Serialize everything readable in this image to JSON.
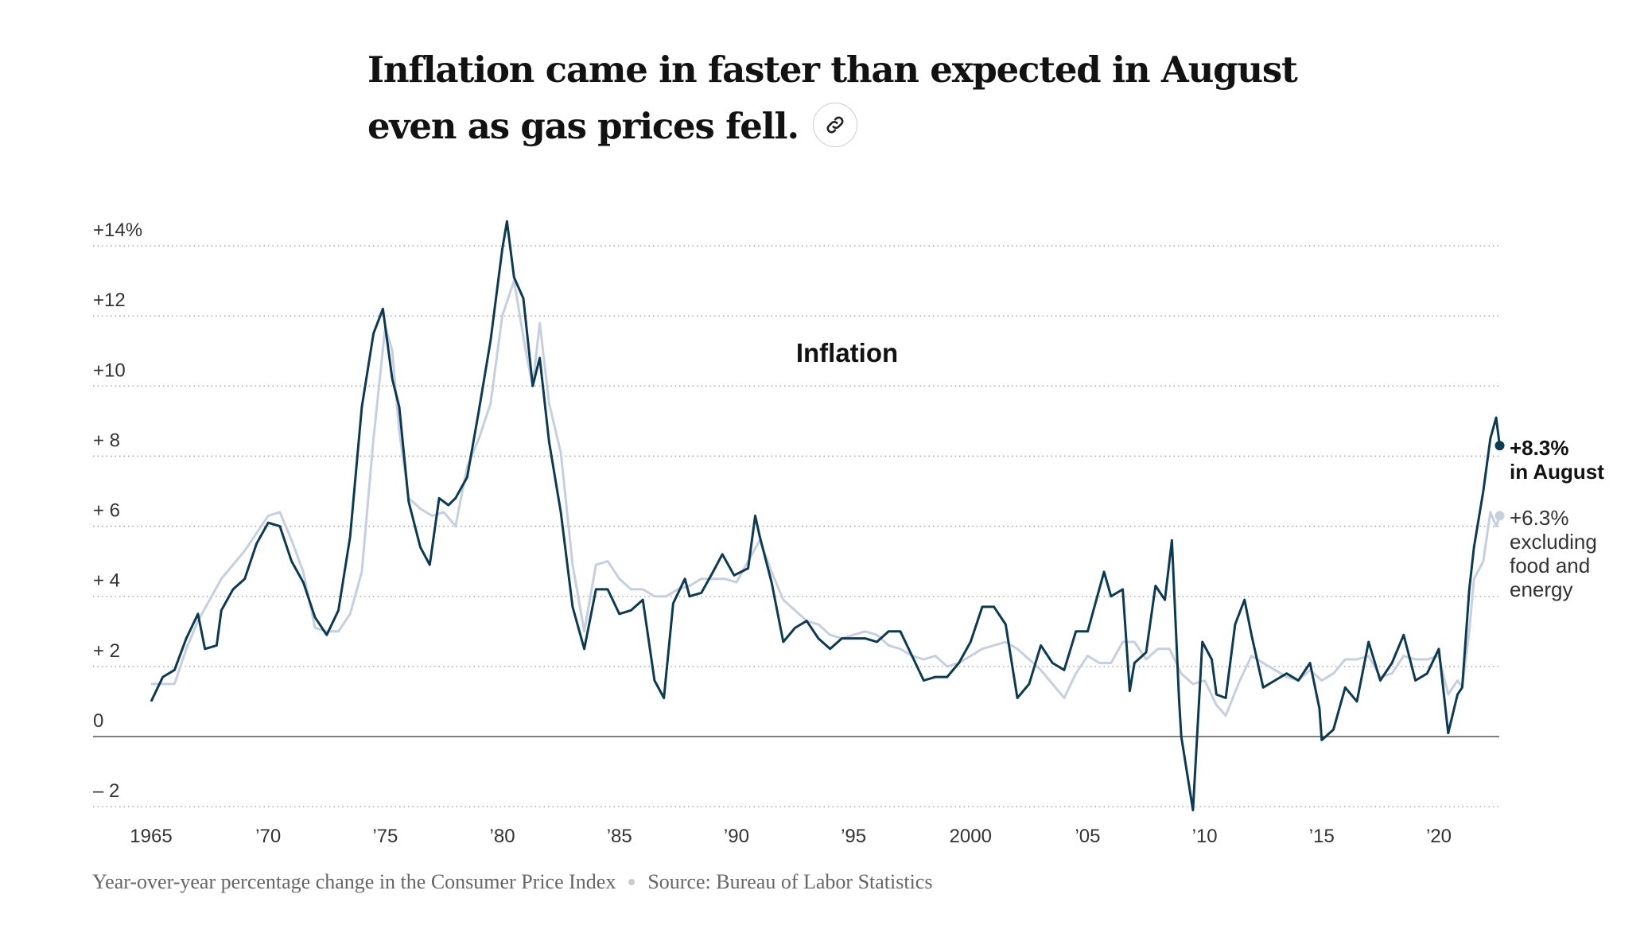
{
  "headline": {
    "line1": "Inflation came in faster than expected in August",
    "line2": "even as gas prices fell."
  },
  "link_icon": "link-icon",
  "footer": {
    "description": "Year-over-year percentage change in the Consumer Price Index",
    "source": "Source: Bureau of Labor Statistics"
  },
  "colors": {
    "cpi": "#0b3a53",
    "core": "#c5cfdf",
    "grid": "#999999",
    "zero": "#555555"
  },
  "chart_data": {
    "type": "line",
    "title": "Inflation",
    "xlabel": "",
    "ylabel": "",
    "xlim": [
      1965,
      2022.6
    ],
    "ylim": [
      -2,
      14
    ],
    "grid": true,
    "yticks": [
      {
        "v": 14,
        "label": "+14%"
      },
      {
        "v": 12,
        "label": "+12"
      },
      {
        "v": 10,
        "label": "+10"
      },
      {
        "v": 8,
        "label": "+ 8"
      },
      {
        "v": 6,
        "label": "+ 6"
      },
      {
        "v": 4,
        "label": "+ 4"
      },
      {
        "v": 2,
        "label": "+ 2"
      },
      {
        "v": 0,
        "label": "0"
      },
      {
        "v": -2,
        "label": "– 2"
      }
    ],
    "xticks": [
      {
        "v": 1965,
        "label": "1965"
      },
      {
        "v": 1970,
        "label": "’70"
      },
      {
        "v": 1975,
        "label": "’75"
      },
      {
        "v": 1980,
        "label": "’80"
      },
      {
        "v": 1985,
        "label": "’85"
      },
      {
        "v": 1990,
        "label": "’90"
      },
      {
        "v": 1995,
        "label": "’95"
      },
      {
        "v": 2000,
        "label": "2000"
      },
      {
        "v": 2005,
        "label": "’05"
      },
      {
        "v": 2010,
        "label": "’10"
      },
      {
        "v": 2015,
        "label": "’15"
      },
      {
        "v": 2020,
        "label": "’20"
      }
    ],
    "annotations": {
      "cpi": {
        "value": "+8.3%",
        "text": "in August"
      },
      "core": {
        "value": "+6.3%",
        "text1": "excluding",
        "text2": "food and",
        "text3": "energy"
      }
    },
    "series": [
      {
        "key": "cpi",
        "x": [
          1965,
          1965.5,
          1966,
          1966.5,
          1967,
          1967.3,
          1967.8,
          1968,
          1968.5,
          1969,
          1969.5,
          1970,
          1970.5,
          1971,
          1971.5,
          1972,
          1972.5,
          1973,
          1973.5,
          1974,
          1974.5,
          1974.9,
          1975.3,
          1975.6,
          1976,
          1976.5,
          1976.9,
          1977.3,
          1977.7,
          1978,
          1978.5,
          1979,
          1979.5,
          1980,
          1980.2,
          1980.5,
          1980.9,
          1981.3,
          1981.6,
          1982,
          1982.5,
          1983,
          1983.5,
          1984,
          1984.5,
          1985,
          1985.5,
          1986,
          1986.5,
          1986.9,
          1987.3,
          1987.8,
          1988,
          1988.5,
          1989,
          1989.4,
          1989.9,
          1990.5,
          1990.8,
          1991,
          1991.5,
          1992,
          1992.5,
          1993,
          1993.5,
          1994,
          1994.5,
          1995,
          1995.5,
          1996,
          1996.5,
          1997,
          1997.5,
          1998,
          1998.5,
          1999,
          1999.5,
          2000,
          2000.5,
          2001,
          2001.5,
          2002,
          2002.5,
          2003,
          2003.5,
          2004,
          2004.5,
          2005,
          2005.7,
          2006,
          2006.5,
          2006.8,
          2007,
          2007.5,
          2007.9,
          2008.3,
          2008.6,
          2008.9,
          2009,
          2009.5,
          2009.9,
          2010.3,
          2010.5,
          2010.9,
          2011.3,
          2011.7,
          2012,
          2012.5,
          2013,
          2013.5,
          2014,
          2014.5,
          2014.9,
          2015,
          2015.5,
          2016,
          2016.5,
          2017,
          2017.5,
          2018,
          2018.5,
          2019,
          2019.5,
          2020,
          2020.4,
          2020.8,
          2021,
          2021.3,
          2021.5,
          2021.9,
          2022.2,
          2022.45,
          2022.6
        ],
        "values": [
          1.0,
          1.7,
          1.9,
          2.8,
          3.5,
          2.5,
          2.6,
          3.6,
          4.2,
          4.5,
          5.5,
          6.1,
          6.0,
          5.0,
          4.4,
          3.4,
          2.9,
          3.6,
          5.7,
          9.4,
          11.5,
          12.2,
          10.2,
          9.4,
          6.7,
          5.4,
          4.9,
          6.8,
          6.6,
          6.8,
          7.4,
          9.3,
          11.3,
          13.9,
          14.7,
          13.1,
          12.5,
          10.0,
          10.8,
          8.4,
          6.4,
          3.7,
          2.5,
          4.2,
          4.2,
          3.5,
          3.6,
          3.9,
          1.6,
          1.1,
          3.8,
          4.5,
          4.0,
          4.1,
          4.7,
          5.2,
          4.6,
          4.8,
          6.3,
          5.7,
          4.4,
          2.7,
          3.1,
          3.3,
          2.8,
          2.5,
          2.8,
          2.8,
          2.8,
          2.7,
          3.0,
          3.0,
          2.3,
          1.6,
          1.7,
          1.7,
          2.1,
          2.7,
          3.7,
          3.7,
          3.2,
          1.1,
          1.5,
          2.6,
          2.1,
          1.9,
          3.0,
          3.0,
          4.7,
          4.0,
          4.2,
          1.3,
          2.1,
          2.4,
          4.3,
          3.9,
          5.6,
          1.1,
          0.0,
          -2.1,
          2.7,
          2.2,
          1.2,
          1.1,
          3.2,
          3.9,
          2.9,
          1.4,
          1.6,
          1.8,
          1.6,
          2.1,
          0.8,
          -0.1,
          0.2,
          1.4,
          1.0,
          2.7,
          1.6,
          2.1,
          2.9,
          1.6,
          1.8,
          2.5,
          0.1,
          1.2,
          1.4,
          4.2,
          5.4,
          7.0,
          8.5,
          9.1,
          8.3
        ]
      },
      {
        "key": "core",
        "x": [
          1965,
          1966,
          1966.5,
          1967,
          1968,
          1969,
          1970,
          1970.5,
          1971,
          1971.5,
          1972,
          1972.5,
          1973,
          1973.5,
          1974,
          1974.5,
          1975,
          1975.3,
          1975.6,
          1976,
          1976.5,
          1977,
          1977.5,
          1978,
          1978.5,
          1979,
          1979.5,
          1980,
          1980.5,
          1981,
          1981.3,
          1981.6,
          1982,
          1982.5,
          1983,
          1983.5,
          1984,
          1984.5,
          1985,
          1985.5,
          1986,
          1986.5,
          1987,
          1987.5,
          1988,
          1988.5,
          1989,
          1989.5,
          1990,
          1990.5,
          1991,
          1991.5,
          1992,
          1992.5,
          1993,
          1993.5,
          1994,
          1994.5,
          1995,
          1995.5,
          1996,
          1996.5,
          1997,
          1997.5,
          1998,
          1998.5,
          1999,
          1999.5,
          2000,
          2000.5,
          2001,
          2001.5,
          2002,
          2002.5,
          2003,
          2003.5,
          2004,
          2004.5,
          2005,
          2005.5,
          2006,
          2006.5,
          2007,
          2007.5,
          2008,
          2008.5,
          2009,
          2009.5,
          2010,
          2010.5,
          2010.9,
          2011.5,
          2012,
          2012.5,
          2013,
          2013.5,
          2014,
          2014.5,
          2015,
          2015.5,
          2016,
          2016.5,
          2017,
          2017.5,
          2018,
          2018.5,
          2019,
          2019.5,
          2020,
          2020.4,
          2020.8,
          2021,
          2021.3,
          2021.5,
          2021.9,
          2022.2,
          2022.45,
          2022.6
        ],
        "values": [
          1.5,
          1.5,
          2.5,
          3.3,
          4.5,
          5.3,
          6.3,
          6.4,
          5.6,
          4.7,
          3.1,
          3.0,
          3.0,
          3.5,
          4.7,
          8.5,
          11.7,
          11.0,
          8.7,
          6.8,
          6.5,
          6.3,
          6.4,
          6.0,
          7.7,
          8.5,
          9.5,
          12.0,
          13.0,
          11.0,
          10.0,
          11.8,
          9.5,
          8.1,
          4.9,
          3.0,
          4.9,
          5.0,
          4.5,
          4.2,
          4.2,
          4.0,
          4.0,
          4.2,
          4.3,
          4.5,
          4.5,
          4.5,
          4.4,
          5.0,
          5.6,
          4.7,
          3.9,
          3.6,
          3.3,
          3.2,
          2.9,
          2.8,
          2.9,
          3.0,
          2.9,
          2.6,
          2.5,
          2.3,
          2.2,
          2.3,
          2.0,
          2.1,
          2.3,
          2.5,
          2.6,
          2.7,
          2.5,
          2.2,
          1.9,
          1.5,
          1.1,
          1.8,
          2.3,
          2.1,
          2.1,
          2.7,
          2.7,
          2.2,
          2.5,
          2.5,
          1.8,
          1.5,
          1.6,
          0.9,
          0.6,
          1.6,
          2.3,
          2.1,
          1.9,
          1.7,
          1.6,
          1.9,
          1.6,
          1.8,
          2.2,
          2.2,
          2.3,
          1.7,
          1.8,
          2.3,
          2.2,
          2.2,
          2.3,
          1.2,
          1.6,
          1.4,
          3.0,
          4.5,
          5.0,
          6.4,
          6.0,
          6.3
        ]
      }
    ]
  }
}
